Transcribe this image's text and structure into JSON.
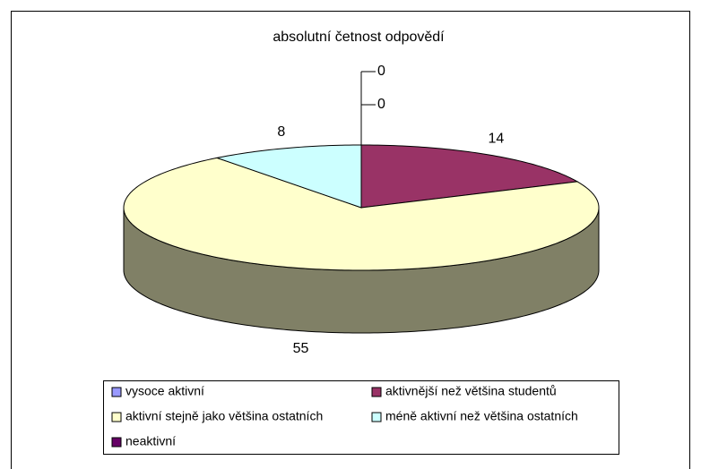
{
  "chart_data": {
    "type": "pie3d",
    "title": "absolutní četnost odpovědí",
    "categories": [
      "vysoce aktivní",
      "aktivnější než většina studentů",
      "aktivní stejně jako většina ostatních",
      "méně aktivní než většina ostatních",
      "neaktivní"
    ],
    "values": [
      0,
      14,
      55,
      8,
      0
    ],
    "colors": [
      "#9999ff",
      "#993366",
      "#ffffcc",
      "#ccffff",
      "#660066"
    ],
    "legend": "bottom"
  }
}
